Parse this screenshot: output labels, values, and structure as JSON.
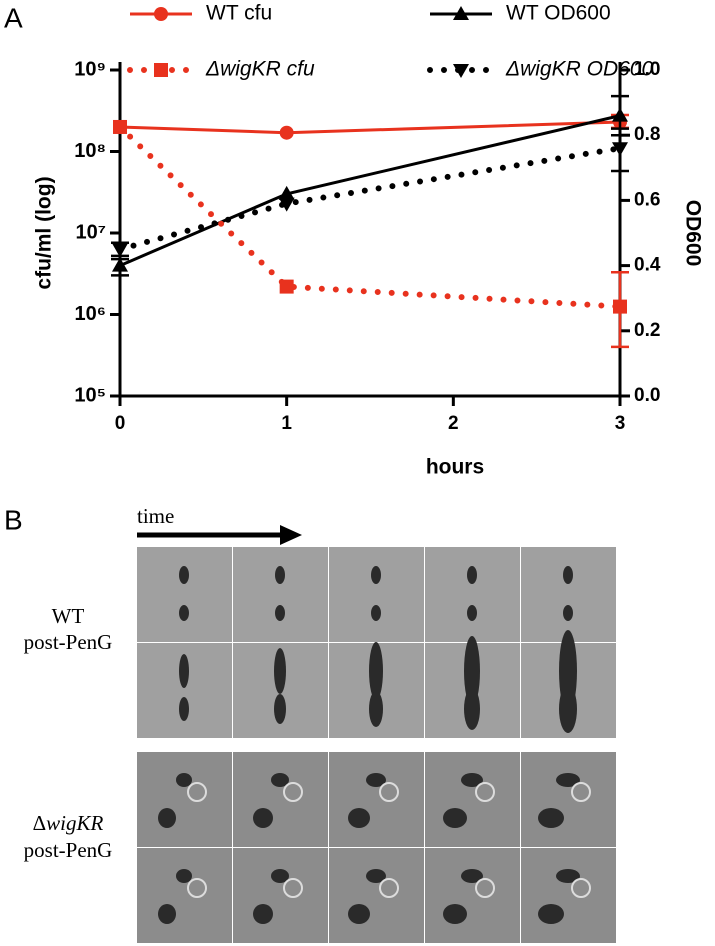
{
  "panel_a_label": "A",
  "chart_data": {
    "type": "line",
    "x_label": "hours",
    "y_label": "cfu/ml (log)",
    "y2_label": "OD600",
    "xlim": [
      0,
      3
    ],
    "xticks": [
      0,
      1,
      2,
      3
    ],
    "ylim": [
      100000,
      1000000000
    ],
    "log_y": true,
    "yticks": [
      {
        "value": 100000,
        "label": "10⁵"
      },
      {
        "value": 1000000,
        "label": "10⁶"
      },
      {
        "value": 10000000,
        "label": "10⁷"
      },
      {
        "value": 100000000,
        "label": "10⁸"
      },
      {
        "value": 1000000000,
        "label": "10⁹"
      }
    ],
    "y2lim": [
      0,
      1.0
    ],
    "y2ticks": [
      {
        "value": 0,
        "label": "0.0"
      },
      0.2,
      0.4,
      0.6,
      0.8,
      {
        "value": 1.0,
        "label": "1.0"
      }
    ],
    "legend": "top",
    "series": [
      {
        "name": "WT cfu",
        "color": "#e8321e",
        "line_style": "solid",
        "marker": "circle",
        "axis": "y",
        "x": [
          0,
          1,
          3
        ],
        "values": [
          200000000,
          170000000,
          230000000
        ],
        "error_bars": [
          null,
          null,
          [
            195000000,
            280000000
          ]
        ]
      },
      {
        "name": "WT OD600",
        "color": "#000000",
        "line_style": "solid",
        "marker": "triangle",
        "axis": "y2",
        "x": [
          0,
          1,
          3
        ],
        "values": [
          0.4,
          0.62,
          0.86
        ],
        "error_bars": [
          [
            0.37,
            0.42
          ],
          null,
          [
            0.8,
            0.92
          ]
        ]
      },
      {
        "name": "ΔwigKR cfu",
        "color": "#e8321e",
        "line_style": "dotted",
        "marker": "square",
        "axis": "y",
        "font_style": "italic",
        "x": [
          0,
          1,
          3
        ],
        "values": [
          200000000,
          2200000,
          1250000
        ],
        "error_bars": [
          null,
          null,
          [
            400000,
            3300000
          ]
        ]
      },
      {
        "name": "ΔwigKR OD600",
        "color": "#000000",
        "line_style": "dotted",
        "marker": "triangle-down",
        "axis": "y2",
        "font_style": "italic",
        "x": [
          0,
          1,
          3
        ],
        "values": [
          0.45,
          0.59,
          0.76
        ],
        "error_bars": [
          [
            0.43,
            0.47
          ],
          null,
          [
            0.69,
            0.82
          ]
        ]
      }
    ]
  },
  "panel_b": {
    "label": "B",
    "arrow_label": "time",
    "groups": [
      {
        "name": "WT",
        "condition": "post-PenG"
      },
      {
        "prefix": "Δ",
        "name": "wigKR",
        "name_italic": true,
        "condition": "post-PenG"
      }
    ]
  }
}
